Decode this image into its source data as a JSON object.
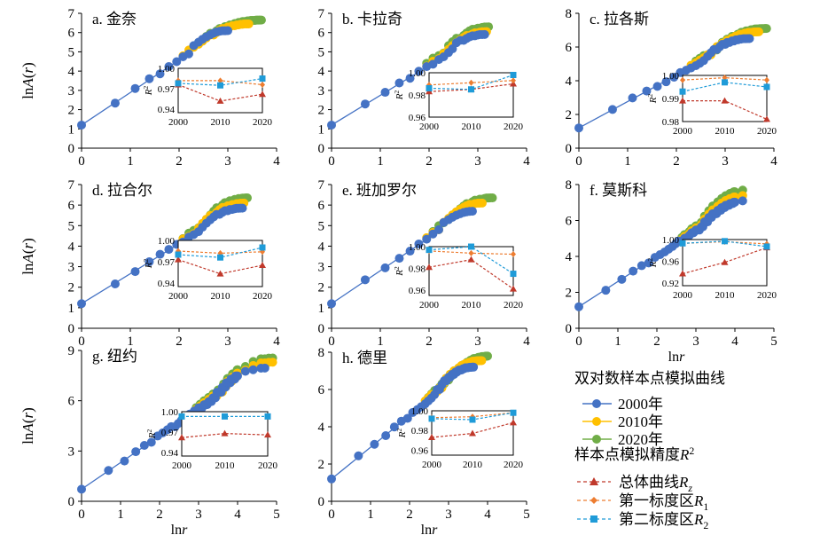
{
  "chart_data": [
    {
      "type": "scatter",
      "panel_title": "a. 金奈",
      "xlabel": "",
      "ylabel": "lnA(r)",
      "xlim": [
        0,
        4
      ],
      "ylim": [
        0,
        7
      ],
      "xticks": [
        "0",
        "1",
        "2",
        "3",
        "4"
      ],
      "yticks": [
        "0",
        "1",
        "2",
        "3",
        "4",
        "5",
        "6",
        "7"
      ],
      "series": [
        {
          "name": "2000年",
          "color": "#4472c4",
          "x_end": 3.0,
          "y_end": 6.1
        },
        {
          "name": "2010年",
          "color": "#ffc000",
          "x_end": 3.45,
          "y_end": 6.45
        },
        {
          "name": "2020年",
          "color": "#70ad47",
          "x_end": 3.7,
          "y_end": 6.65
        }
      ],
      "inset": {
        "x": [
          2000,
          2010,
          2020
        ],
        "xticks": [
          "2000",
          "2010",
          "2020"
        ],
        "yticks": [
          "0.94",
          "0.97",
          "1.00"
        ],
        "ylim": [
          0.935,
          1.0
        ],
        "ylabel": "R²",
        "series": [
          {
            "name": "总体曲线Rz",
            "values": [
              0.976,
              0.952,
              0.962
            ]
          },
          {
            "name": "第一标度区R1",
            "values": [
              0.982,
              0.982,
              0.976
            ]
          },
          {
            "name": "第二标度区R2",
            "values": [
              0.978,
              0.975,
              0.985
            ]
          }
        ]
      }
    },
    {
      "type": "scatter",
      "panel_title": "b. 卡拉奇",
      "xlabel": "",
      "ylabel": "",
      "xlim": [
        0,
        4
      ],
      "ylim": [
        0,
        7
      ],
      "xticks": [
        "0",
        "1",
        "2",
        "3",
        "4"
      ],
      "yticks": [
        "0",
        "1",
        "2",
        "3",
        "4",
        "5",
        "6",
        "7"
      ],
      "series": [
        {
          "name": "2000年",
          "color": "#4472c4",
          "x_end": 3.15,
          "y_end": 5.9
        },
        {
          "name": "2010年",
          "color": "#ffc000",
          "x_end": 3.2,
          "y_end": 6.05
        },
        {
          "name": "2020年",
          "color": "#70ad47",
          "x_end": 3.25,
          "y_end": 6.3
        }
      ],
      "inset": {
        "x": [
          2000,
          2010,
          2020
        ],
        "xticks": [
          "2000",
          "2010",
          "2020"
        ],
        "yticks": [
          "0.96",
          "0.98",
          "1.00"
        ],
        "ylim": [
          0.96,
          1.0
        ],
        "ylabel": "R²",
        "series": [
          {
            "name": "总体曲线Rz",
            "values": [
              0.983,
              0.985,
              0.99
            ]
          },
          {
            "name": "第一标度区R1",
            "values": [
              0.989,
              0.991,
              0.993
            ]
          },
          {
            "name": "第二标度区R2",
            "values": [
              0.986,
              0.985,
              0.998
            ]
          }
        ]
      }
    },
    {
      "type": "scatter",
      "panel_title": "c. 拉各斯",
      "xlabel": "",
      "ylabel": "",
      "xlim": [
        0,
        4
      ],
      "ylim": [
        0,
        8
      ],
      "xticks": [
        "0",
        "1",
        "2",
        "3",
        "4"
      ],
      "yticks": [
        "0",
        "2",
        "4",
        "6",
        "8"
      ],
      "series": [
        {
          "name": "2000年",
          "color": "#4472c4",
          "x_end": 3.5,
          "y_end": 6.5
        },
        {
          "name": "2010年",
          "color": "#ffc000",
          "x_end": 3.7,
          "y_end": 6.9
        },
        {
          "name": "2020年",
          "color": "#70ad47",
          "x_end": 3.85,
          "y_end": 7.1
        }
      ],
      "inset": {
        "x": [
          2000,
          2010,
          2020
        ],
        "xticks": [
          "2000",
          "2010",
          "2020"
        ],
        "yticks": [
          "0.98",
          "0.99",
          "1.00"
        ],
        "ylim": [
          0.98,
          1.0
        ],
        "ylabel": "R²",
        "series": [
          {
            "name": "总体曲线Rz",
            "values": [
              0.989,
              0.989,
              0.981
            ]
          },
          {
            "name": "第一标度区R1",
            "values": [
              0.998,
              0.999,
              0.998
            ]
          },
          {
            "name": "第二标度区R2",
            "values": [
              0.993,
              0.997,
              0.995
            ]
          }
        ]
      }
    },
    {
      "type": "scatter",
      "panel_title": "d. 拉合尔",
      "xlabel": "",
      "ylabel": "lnA(r)",
      "xlim": [
        0,
        4
      ],
      "ylim": [
        0,
        7
      ],
      "xticks": [
        "0",
        "1",
        "2",
        "3",
        "4"
      ],
      "yticks": [
        "0",
        "1",
        "2",
        "3",
        "4",
        "5",
        "6",
        "7"
      ],
      "series": [
        {
          "name": "2000年",
          "color": "#4472c4",
          "x_end": 3.3,
          "y_end": 5.85
        },
        {
          "name": "2010年",
          "color": "#ffc000",
          "x_end": 3.35,
          "y_end": 6.1
        },
        {
          "name": "2020年",
          "color": "#70ad47",
          "x_end": 3.4,
          "y_end": 6.35
        }
      ],
      "inset": {
        "x": [
          2000,
          2010,
          2020
        ],
        "xticks": [
          "2000",
          "2010",
          "2020"
        ],
        "yticks": [
          "0.94",
          "0.97",
          "1.00"
        ],
        "ylim": [
          0.935,
          1.0
        ],
        "ylabel": "R²",
        "series": [
          {
            "name": "总体曲线Rz",
            "values": [
              0.973,
              0.953,
              0.965
            ]
          },
          {
            "name": "第一标度区R1",
            "values": [
              0.985,
              0.982,
              0.984
            ]
          },
          {
            "name": "第二标度区R2",
            "values": [
              0.98,
              0.976,
              0.99
            ]
          }
        ]
      }
    },
    {
      "type": "scatter",
      "panel_title": "e. 班加罗尔",
      "xlabel": "",
      "ylabel": "",
      "xlim": [
        0,
        4
      ],
      "ylim": [
        0,
        7
      ],
      "xticks": [
        "0",
        "1",
        "2",
        "3",
        "4"
      ],
      "yticks": [
        "0",
        "1",
        "2",
        "3",
        "4",
        "5",
        "6",
        "7"
      ],
      "series": [
        {
          "name": "2000年",
          "color": "#4472c4",
          "x_end": 2.9,
          "y_end": 5.7
        },
        {
          "name": "2010年",
          "color": "#ffc000",
          "x_end": 3.1,
          "y_end": 6.1
        },
        {
          "name": "2020年",
          "color": "#70ad47",
          "x_end": 3.3,
          "y_end": 6.35
        }
      ],
      "inset": {
        "x": [
          2000,
          2010,
          2020
        ],
        "xticks": [
          "2000",
          "2010",
          "2020"
        ],
        "yticks": [
          "0.96",
          "0.98",
          "1.00"
        ],
        "ylim": [
          0.955,
          1.0
        ],
        "ylabel": "R²",
        "series": [
          {
            "name": "总体曲线Rz",
            "values": [
              0.981,
              0.988,
              0.961
            ]
          },
          {
            "name": "第一标度区R1",
            "values": [
              0.996,
              0.994,
              0.993
            ]
          },
          {
            "name": "第二标度区R2",
            "values": [
              0.997,
              1.0,
              0.975
            ]
          }
        ]
      }
    },
    {
      "type": "scatter",
      "panel_title": "f. 莫斯科",
      "xlabel": "lnr",
      "ylabel": "",
      "xlim": [
        0,
        5
      ],
      "ylim": [
        0,
        8
      ],
      "xticks": [
        "0",
        "1",
        "2",
        "3",
        "4",
        "5"
      ],
      "yticks": [
        "0",
        "2",
        "4",
        "6",
        "8"
      ],
      "series": [
        {
          "name": "2000年",
          "color": "#4472c4",
          "x_end": 4.35,
          "y_end": 7.1
        },
        {
          "name": "2010年",
          "color": "#ffc000",
          "x_end": 4.35,
          "y_end": 7.4
        },
        {
          "name": "2020年",
          "color": "#70ad47",
          "x_end": 4.35,
          "y_end": 7.7
        }
      ],
      "inset": {
        "x": [
          2000,
          2010,
          2020
        ],
        "xticks": [
          "2000",
          "2010",
          "2020"
        ],
        "yticks": [
          "0.92",
          "0.96",
          "1.00"
        ],
        "ylim": [
          0.915,
          1.0
        ],
        "ylabel": "R²",
        "series": [
          {
            "name": "总体曲线Rz",
            "values": [
              0.937,
              0.958,
              0.985
            ]
          },
          {
            "name": "第一标度区R1",
            "values": [
              0.993,
              0.996,
              0.992
            ]
          },
          {
            "name": "第二标度区R2",
            "values": [
              0.993,
              0.997,
              0.987
            ]
          }
        ]
      }
    },
    {
      "type": "scatter",
      "panel_title": "g. 纽约",
      "xlabel": "lnr",
      "ylabel": "lnA(r)",
      "xlim": [
        0,
        5
      ],
      "ylim": [
        0,
        9
      ],
      "xticks": [
        "0",
        "1",
        "2",
        "3",
        "4",
        "5"
      ],
      "yticks": [
        "0",
        "3",
        "6",
        "9"
      ],
      "series": [
        {
          "name": "2000年",
          "color": "#4472c4",
          "x_end": 4.7,
          "y_end": 7.95
        },
        {
          "name": "2010年",
          "color": "#ffc000",
          "x_end": 4.9,
          "y_end": 8.3
        },
        {
          "name": "2020年",
          "color": "#70ad47",
          "x_end": 4.9,
          "y_end": 8.55
        }
      ],
      "inset": {
        "x": [
          2000,
          2010,
          2020
        ],
        "xticks": [
          "2000",
          "2010",
          "2020"
        ],
        "yticks": [
          "0.94",
          "0.97",
          "1.00"
        ],
        "ylim": [
          0.935,
          1.0
        ],
        "ylabel": "R²",
        "series": [
          {
            "name": "总体曲线Rz",
            "values": [
              0.962,
              0.968,
              0.966
            ]
          },
          {
            "name": "第二标度区R2",
            "values": [
              0.993,
              0.993,
              0.993
            ]
          }
        ]
      }
    },
    {
      "type": "scatter",
      "panel_title": "h. 德里",
      "xlabel": "lnr",
      "ylabel": "",
      "xlim": [
        0,
        5
      ],
      "ylim": [
        0,
        8
      ],
      "xticks": [
        "0",
        "1",
        "2",
        "3",
        "4",
        "5"
      ],
      "yticks": [
        "0",
        "2",
        "4",
        "6",
        "8"
      ],
      "series": [
        {
          "name": "2000年",
          "color": "#4472c4",
          "x_end": 3.65,
          "y_end": 7.2
        },
        {
          "name": "2010年",
          "color": "#ffc000",
          "x_end": 3.85,
          "y_end": 7.55
        },
        {
          "name": "2020年",
          "color": "#70ad47",
          "x_end": 4.1,
          "y_end": 7.8
        }
      ],
      "inset": {
        "x": [
          2000,
          2010,
          2020
        ],
        "xticks": [
          "2000",
          "2010",
          "2020"
        ],
        "yticks": [
          "0.96",
          "0.98",
          "1.00"
        ],
        "ylim": [
          0.955,
          1.0
        ],
        "ylabel": "R²",
        "series": [
          {
            "name": "总体曲线Rz",
            "values": [
              0.973,
              0.977,
              0.988
            ]
          },
          {
            "name": "第一标度区R1",
            "values": [
              0.993,
              0.994,
              0.998
            ]
          },
          {
            "name": "第二标度区R2",
            "values": [
              0.992,
              0.991,
              0.998
            ]
          }
        ]
      }
    }
  ],
  "legend": {
    "main_title": "双对数样本点模拟曲线",
    "main_items": [
      {
        "label": "2000年",
        "color": "#4472c4"
      },
      {
        "label": "2010年",
        "color": "#ffc000"
      },
      {
        "label": "2020年",
        "color": "#70ad47"
      }
    ],
    "r2_title": "样本点模拟精度R²",
    "r2_items": [
      {
        "label": "总体曲线Rz",
        "color": "#c0392b",
        "marker": "triangle"
      },
      {
        "label": "第一标度区R1",
        "color": "#ed7d31",
        "marker": "diamond"
      },
      {
        "label": "第二标度区R2",
        "color": "#1f9bd8",
        "marker": "square"
      }
    ]
  },
  "inset_colors": {
    "Rz": "#c0392b",
    "R1": "#ed7d31",
    "R2": "#1f9bd8"
  }
}
